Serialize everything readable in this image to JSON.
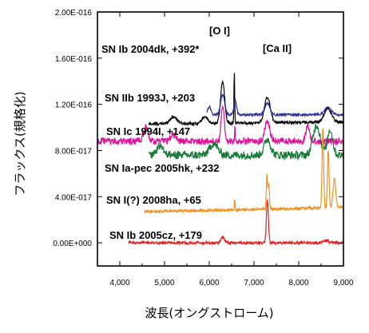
{
  "chart_data": {
    "type": "line",
    "xlabel": "波長(オングストローム)",
    "ylabel": "フラックス(規格化)",
    "xlim": [
      3500,
      9000
    ],
    "ylim": [
      -2e-17,
      2e-16
    ],
    "x_ticks": [
      4000,
      5000,
      6000,
      7000,
      8000,
      9000
    ],
    "x_tick_labels": [
      "4,000",
      "5,000",
      "6,000",
      "7,000",
      "8,000",
      "9,000"
    ],
    "y_ticks": [
      0,
      4e-17,
      8e-17,
      1.2e-16,
      1.6e-16,
      2e-16
    ],
    "y_tick_labels": [
      "0.00E+000",
      "4.00E-017",
      "8.00E-017",
      "1.20E-016",
      "1.60E-016",
      "2.00E-016"
    ],
    "line_annotations": [
      {
        "text": "[O I]",
        "x": 6300
      },
      {
        "text": "[Ca II]",
        "x": 7300
      }
    ],
    "series": [
      {
        "name": "SN Ib 2004dk, +392*",
        "color": "#000000",
        "x_range": [
          4650,
          9000
        ],
        "baseline": 1.03e-16,
        "slope": 4e-19,
        "noise": 1.2e-18,
        "features": [
          {
            "x": 5200,
            "h": 6e-18,
            "w": 80
          },
          {
            "x": 5900,
            "h": 6e-18,
            "w": 60
          },
          {
            "x": 6300,
            "h": 3.6e-17,
            "w": 45
          },
          {
            "x": 6560,
            "h": 4.5e-17,
            "w": 8
          },
          {
            "x": 7300,
            "h": 2.2e-17,
            "w": 65
          },
          {
            "x": 8650,
            "h": 1.2e-17,
            "w": 80
          }
        ]
      },
      {
        "name": "SN IIb 1993J, +203",
        "color": "#2e2e96",
        "x_range": [
          5950,
          9000
        ],
        "baseline": 1.11e-16,
        "slope": 0.0,
        "noise": 1e-18,
        "features": [
          {
            "x": 6000,
            "h": 7e-18,
            "w": 35
          },
          {
            "x": 6300,
            "h": 1.7e-17,
            "w": 45
          },
          {
            "x": 6580,
            "h": 1.3e-17,
            "w": 30
          },
          {
            "x": 7300,
            "h": 1e-17,
            "w": 55
          },
          {
            "x": 8650,
            "h": 6e-18,
            "w": 80
          }
        ]
      },
      {
        "name": "SN Ic 1994I, +147",
        "color": "#e0109a",
        "x_range": [
          3500,
          9000
        ],
        "baseline": 8.8e-17,
        "slope": 0.0,
        "noise": 3e-18,
        "features": [
          {
            "x": 4580,
            "h": 1.2e-17,
            "w": 50
          },
          {
            "x": 5200,
            "h": 6e-18,
            "w": 60
          },
          {
            "x": 6300,
            "h": 3e-17,
            "w": 35
          },
          {
            "x": 6575,
            "h": 1.6e-17,
            "w": 6
          },
          {
            "x": 7300,
            "h": 1.8e-17,
            "w": 55
          },
          {
            "x": 8200,
            "h": 1.4e-17,
            "w": 40
          }
        ]
      },
      {
        "name": "SN Ia-pec 2005hk, +232",
        "color": "#1a7a3a",
        "x_range": [
          4650,
          9000
        ],
        "baseline": 7.6e-17,
        "slope": 0.0,
        "noise": 3.5e-18,
        "features": [
          {
            "x": 4900,
            "h": 8e-18,
            "w": 80
          },
          {
            "x": 6100,
            "h": 1e-17,
            "w": 90
          },
          {
            "x": 7300,
            "h": 1.4e-17,
            "w": 70
          },
          {
            "x": 8400,
            "h": 2.6e-17,
            "w": 80
          },
          {
            "x": 8700,
            "h": 2.2e-17,
            "w": 60
          }
        ]
      },
      {
        "name": "SN I(?) 2008ha, +65",
        "color": "#f09020",
        "x_range": [
          4550,
          9000
        ],
        "baseline": 2.7e-17,
        "slope": 8e-19,
        "noise": 1.2e-18,
        "features": [
          {
            "x": 6570,
            "h": 1e-17,
            "w": 6
          },
          {
            "x": 7290,
            "h": 3e-17,
            "w": 14
          },
          {
            "x": 7330,
            "h": 2.2e-17,
            "w": 14
          },
          {
            "x": 8540,
            "h": 7e-17,
            "w": 18
          },
          {
            "x": 8660,
            "h": 5e-17,
            "w": 18
          },
          {
            "x": 8800,
            "h": 2.5e-17,
            "w": 30
          }
        ]
      },
      {
        "name": "SN Ib 2005cz, +179",
        "color": "#e02020",
        "x_range": [
          4200,
          9000
        ],
        "baseline": 0.0,
        "slope": 0.0,
        "noise": 1.2e-18,
        "features": [
          {
            "x": 6300,
            "h": 5e-18,
            "w": 40
          },
          {
            "x": 7300,
            "h": 3.7e-17,
            "w": 22
          },
          {
            "x": 8600,
            "h": 2e-18,
            "w": 60
          }
        ]
      }
    ]
  }
}
